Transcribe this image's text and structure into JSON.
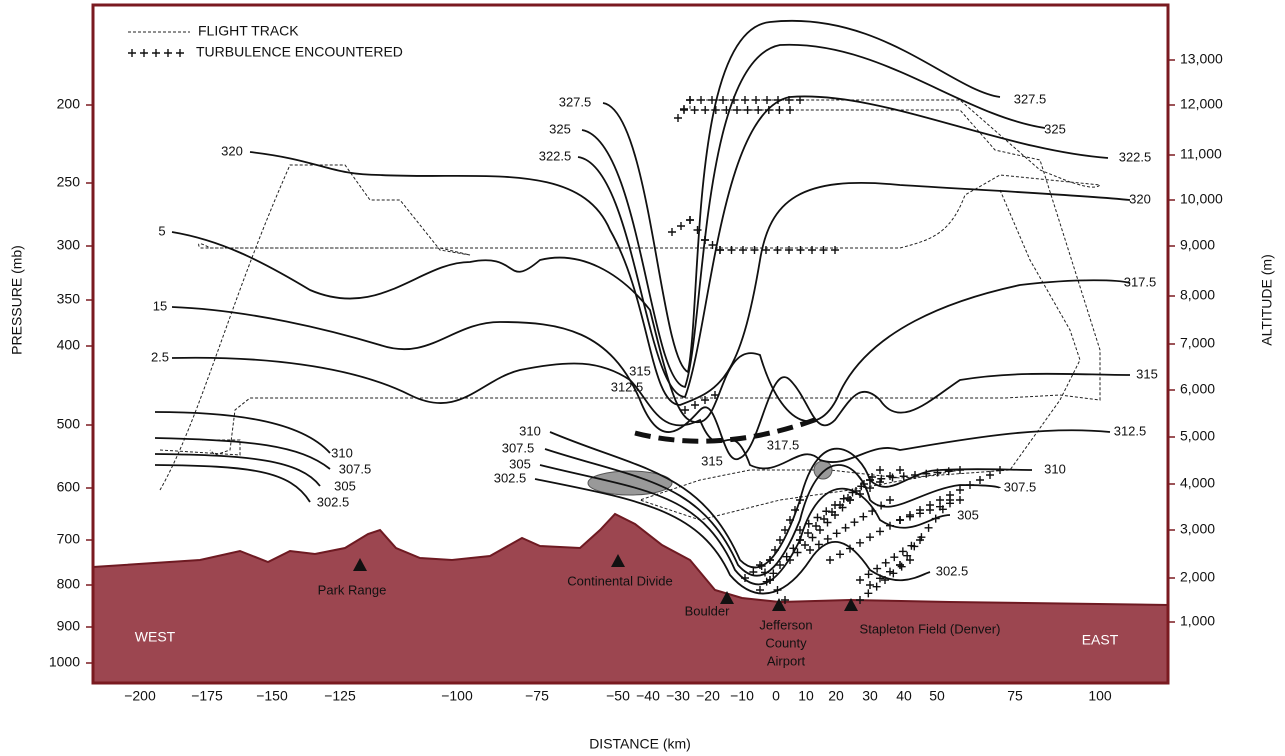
{
  "legend": {
    "flight_track": "FLIGHT TRACK",
    "turbulence": "TURBULENCE ENCOUNTERED"
  },
  "axes": {
    "left": {
      "title": "PRESSURE (mb)",
      "ticks": [
        "200",
        "250",
        "300",
        "350",
        "400",
        "500",
        "600",
        "700",
        "800",
        "900",
        "1000"
      ]
    },
    "right": {
      "title": "ALTITUDE (m)",
      "ticks": [
        "13,000",
        "12,000",
        "11,000",
        "10,000",
        "9,000",
        "8,000",
        "7,000",
        "6,000",
        "5,000",
        "4,000",
        "3,000",
        "2,000",
        "1,000"
      ]
    },
    "bottom": {
      "title": "DISTANCE (km)",
      "ticks": [
        "−200",
        "−175",
        "−150",
        "−125",
        "−100",
        "−75",
        "−50",
        "−40",
        "−30",
        "−20",
        "−10",
        "0",
        "10",
        "20",
        "30",
        "40",
        "50",
        "75",
        "100"
      ]
    }
  },
  "contour_labels": [
    "327.5",
    "327.5",
    "325",
    "325",
    "322.5",
    "322.5",
    "320",
    "320",
    "5",
    "15",
    "2.5",
    "317.5",
    "315",
    "312.5",
    "310",
    "307.5",
    "305",
    "302.5",
    "310",
    "307.5",
    "305",
    "302.5",
    "315",
    "312.5",
    "315",
    "317.5",
    "310",
    "307.5",
    "305",
    "302.5"
  ],
  "places": {
    "park_range": "Park Range",
    "continental_divide": "Continental Divide",
    "boulder": "Boulder",
    "jefferson": [
      "Jefferson",
      "County",
      "Airport"
    ],
    "stapleton": "Stapleton Field (Denver)"
  },
  "regions": {
    "west": "WEST",
    "east": "EAST"
  }
}
